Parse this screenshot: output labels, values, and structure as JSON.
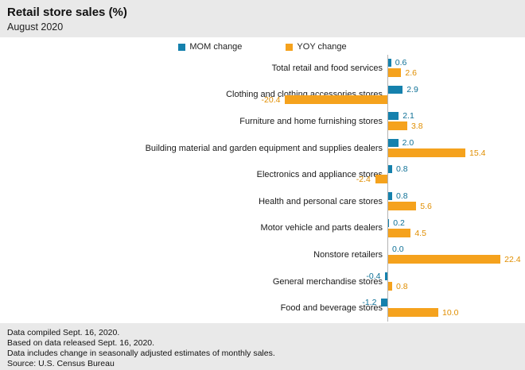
{
  "header": {
    "title": "Retail store sales (%)",
    "subtitle": "August 2020"
  },
  "legend": {
    "mom_label": "MOM change",
    "yoy_label": "YOY change",
    "mom_color": "#1581AD",
    "yoy_color": "#F5A21D"
  },
  "chart_data": {
    "type": "bar",
    "orientation": "horizontal",
    "title": "Retail store sales (%)",
    "xlabel": "",
    "ylabel": "",
    "xlim": [
      -25,
      25
    ],
    "grid": false,
    "legend_position": "top-center",
    "value_labels": true,
    "categories": [
      "Total retail and food services",
      "Clothing and clothing accessories stores",
      "Furniture and home furnishing stores",
      "Building material and garden equipment and supplies dealers",
      "Electronics and appliance stores",
      "Health and personal care stores",
      "Motor vehicle and parts dealers",
      "Nonstore retailers",
      "General merchandise stores",
      "Food and beverage stores"
    ],
    "series": [
      {
        "name": "MOM change",
        "color": "#1581AD",
        "values": [
          0.6,
          2.9,
          2.1,
          2.0,
          0.8,
          0.8,
          0.2,
          0.0,
          -0.4,
          -1.2
        ]
      },
      {
        "name": "YOY change",
        "color": "#F5A21D",
        "values": [
          2.6,
          -20.4,
          3.8,
          15.4,
          -2.4,
          5.6,
          4.5,
          22.4,
          0.8,
          10.0
        ]
      }
    ]
  },
  "footer": {
    "lines": [
      "Data compiled Sept. 16, 2020.",
      "Based on data released Sept. 16, 2020.",
      "Data includes change in seasonally adjusted estimates of monthly sales.",
      "Source: U.S. Census Bureau"
    ]
  }
}
